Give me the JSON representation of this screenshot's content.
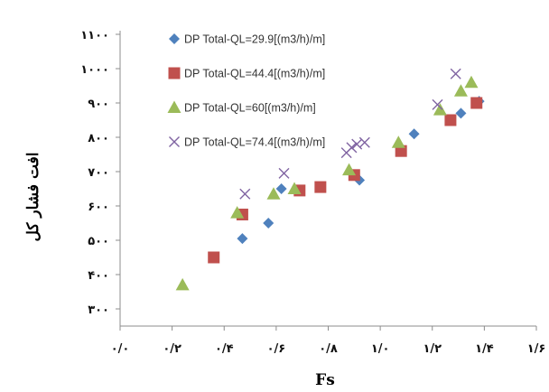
{
  "chart_data": {
    "type": "scatter",
    "xlabel": "Fs",
    "ylabel": "افت فشار کل",
    "xlim": [
      0.0,
      1.6
    ],
    "ylim": [
      250,
      1100
    ],
    "x_ticks": [
      "۰/۰",
      "۰/۲",
      "۰/۴",
      "۰/۶",
      "۰/۸",
      "۱/۰",
      "۱/۲",
      "۱/۴",
      "۱/۶"
    ],
    "x_tick_values": [
      0.0,
      0.2,
      0.4,
      0.6,
      0.8,
      1.0,
      1.2,
      1.4,
      1.6
    ],
    "y_ticks": [
      "۳۰۰",
      "۴۰۰",
      "۵۰۰",
      "۶۰۰",
      "۷۰۰",
      "۸۰۰",
      "۹۰۰",
      "۱۰۰۰",
      "۱۱۰۰"
    ],
    "y_tick_values": [
      300,
      400,
      500,
      600,
      700,
      800,
      900,
      1000,
      1100
    ],
    "grid": false,
    "legend_position": "top-left",
    "series": [
      {
        "name": "DP Total-QL=29.9[(m3/h)/m]",
        "marker": "diamond",
        "color": "#4f81bd",
        "points": [
          [
            0.47,
            505
          ],
          [
            0.57,
            550
          ],
          [
            0.62,
            650
          ],
          [
            0.92,
            675
          ],
          [
            1.13,
            810
          ],
          [
            1.31,
            870
          ],
          [
            1.38,
            905
          ]
        ]
      },
      {
        "name": "DP Total-QL=44.4[(m3/h)/m]",
        "marker": "square",
        "color": "#c0504d",
        "points": [
          [
            0.36,
            450
          ],
          [
            0.47,
            575
          ],
          [
            0.69,
            645
          ],
          [
            0.77,
            655
          ],
          [
            0.9,
            690
          ],
          [
            1.08,
            760
          ],
          [
            1.27,
            850
          ],
          [
            1.37,
            900
          ]
        ]
      },
      {
        "name": "DP Total-QL=60[(m3/h)/m]",
        "marker": "triangle",
        "color": "#9bbb59",
        "points": [
          [
            0.24,
            370
          ],
          [
            0.45,
            580
          ],
          [
            0.59,
            635
          ],
          [
            0.67,
            650
          ],
          [
            0.88,
            705
          ],
          [
            1.07,
            785
          ],
          [
            1.23,
            880
          ],
          [
            1.31,
            935
          ],
          [
            1.35,
            960
          ]
        ]
      },
      {
        "name": "DP Total-QL=74.4[(m3/h)/m]",
        "marker": "x",
        "color": "#8064a2",
        "points": [
          [
            0.48,
            635
          ],
          [
            0.63,
            695
          ],
          [
            0.87,
            755
          ],
          [
            0.89,
            770
          ],
          [
            0.91,
            780
          ],
          [
            0.94,
            785
          ],
          [
            1.22,
            895
          ],
          [
            1.29,
            985
          ]
        ]
      }
    ]
  }
}
